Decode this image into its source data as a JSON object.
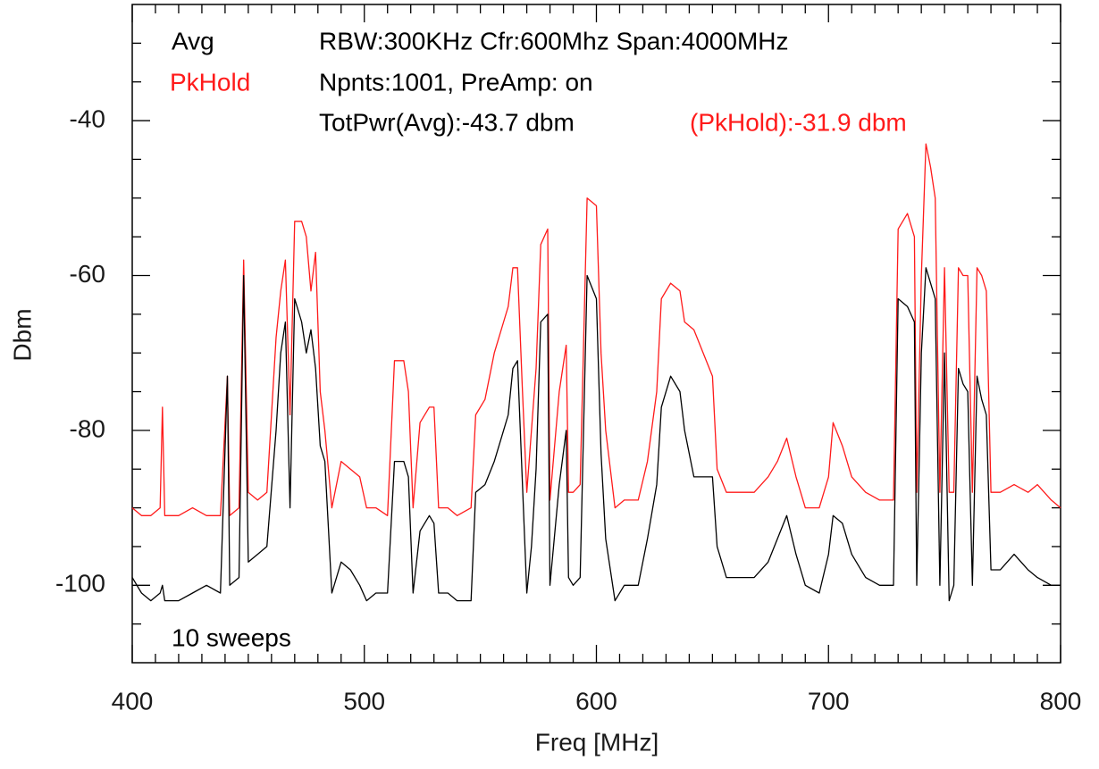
{
  "chart_data": {
    "type": "line",
    "xlabel": "Freq [MHz]",
    "ylabel": "Dbm",
    "annotations": [
      "RBW:300KHz Cfr:600Mhz Span:4000MHz",
      "Npnts:1001,  PreAmp: on",
      "TotPwr(Avg):-43.7 dbm",
      "(PkHold):-31.9 dbm",
      "10 sweeps"
    ],
    "xlim": [
      400,
      800
    ],
    "ylim": [
      -110,
      -25
    ],
    "xticks": [
      400,
      500,
      600,
      700,
      800
    ],
    "yticks": [
      -100,
      -80,
      -60,
      -40
    ],
    "xminorticks": [
      410,
      420,
      430,
      440,
      450,
      460,
      470,
      480,
      490,
      510,
      520,
      530,
      540,
      550,
      560,
      570,
      580,
      590,
      610,
      620,
      630,
      640,
      650,
      660,
      670,
      680,
      690,
      710,
      720,
      730,
      740,
      750,
      760,
      770,
      780,
      790
    ],
    "yminorticks": [
      -105,
      -95,
      -90,
      -85,
      -75,
      -70,
      -65,
      -55,
      -50,
      -45,
      -35,
      -30
    ],
    "x": [
      400,
      404,
      408,
      412,
      413,
      414,
      420,
      426,
      432,
      438,
      441,
      442,
      446,
      448,
      450,
      454,
      458,
      462,
      464,
      466,
      468,
      470,
      473,
      475,
      477,
      479,
      481,
      483,
      486,
      490,
      494,
      498,
      501,
      505,
      510,
      513,
      517,
      519,
      521,
      524,
      528,
      530,
      532,
      536,
      540,
      546,
      548,
      552,
      556,
      560,
      562,
      564,
      566,
      568,
      570,
      572,
      574,
      576,
      579,
      580,
      584,
      587,
      588,
      590,
      593,
      596,
      600,
      602,
      604,
      608,
      612,
      618,
      622,
      626,
      628,
      632,
      636,
      638,
      642,
      646,
      650,
      652,
      656,
      664,
      668,
      674,
      678,
      682,
      686,
      690,
      696,
      700,
      702,
      706,
      710,
      716,
      722,
      728,
      730,
      734,
      737,
      738,
      740,
      742,
      744,
      746,
      748,
      750,
      752,
      754,
      756,
      758,
      760,
      762,
      764,
      766,
      768,
      770,
      774,
      780,
      786,
      790,
      796,
      800
    ],
    "series": [
      {
        "name": "Avg",
        "color": "#000000",
        "values": [
          -99,
          -101,
          -102,
          -101,
          -100,
          -102,
          -102,
          -101,
          -100,
          -101,
          -73,
          -100,
          -99,
          -60,
          -97,
          -96,
          -95,
          -80,
          -70,
          -66,
          -90,
          -63,
          -66,
          -70,
          -67,
          -72,
          -82,
          -84,
          -101,
          -97,
          -98,
          -100,
          -102,
          -101,
          -101,
          -84,
          -84,
          -86,
          -101,
          -93,
          -91,
          -92,
          -101,
          -101,
          -102,
          -102,
          -88,
          -87,
          -84,
          -80,
          -78,
          -72,
          -71,
          -86,
          -101,
          -95,
          -85,
          -66,
          -65,
          -100,
          -87,
          -80,
          -99,
          -100,
          -99,
          -60,
          -63,
          -83,
          -94,
          -102,
          -100,
          -100,
          -94,
          -87,
          -77,
          -73,
          -75,
          -80,
          -86,
          -86,
          -86,
          -95,
          -99,
          -99,
          -99,
          -97,
          -94,
          -91,
          -96,
          -100,
          -101,
          -96,
          -91,
          -92,
          -96,
          -99,
          -100,
          -100,
          -63,
          -64,
          -66,
          -100,
          -70,
          -59,
          -61,
          -63,
          -100,
          -70,
          -102,
          -100,
          -72,
          -74,
          -75,
          -100,
          -73,
          -76,
          -78,
          -98,
          -98,
          -96,
          -98,
          -99,
          -100,
          -100
        ]
      },
      {
        "name": "PkHold",
        "color": "#ff1a1a",
        "values": [
          -90,
          -91,
          -91,
          -90,
          -77,
          -91,
          -91,
          -90,
          -91,
          -91,
          -73,
          -91,
          -90,
          -58,
          -88,
          -89,
          -88,
          -68,
          -62,
          -58,
          -78,
          -53,
          -53,
          -55,
          -62,
          -57,
          -75,
          -80,
          -90,
          -84,
          -85,
          -86,
          -90,
          -90,
          -91,
          -71,
          -71,
          -75,
          -90,
          -79,
          -77,
          -77,
          -90,
          -90,
          -91,
          -90,
          -78,
          -76,
          -70,
          -66,
          -64,
          -59,
          -59,
          -74,
          -88,
          -80,
          -72,
          -56,
          -54,
          -89,
          -75,
          -69,
          -88,
          -88,
          -87,
          -50,
          -51,
          -70,
          -80,
          -90,
          -89,
          -89,
          -84,
          -75,
          -63,
          -61,
          -62,
          -66,
          -67,
          -70,
          -73,
          -85,
          -88,
          -88,
          -88,
          -86,
          -84,
          -81,
          -86,
          -90,
          -90,
          -86,
          -79,
          -82,
          -86,
          -88,
          -89,
          -89,
          -54,
          -52,
          -55,
          -88,
          -60,
          -43,
          -46,
          -50,
          -88,
          -59,
          -88,
          -88,
          -59,
          -60,
          -60,
          -88,
          -59,
          -60,
          -62,
          -88,
          -88,
          -87,
          -88,
          -87,
          -89,
          -90
        ]
      }
    ]
  }
}
